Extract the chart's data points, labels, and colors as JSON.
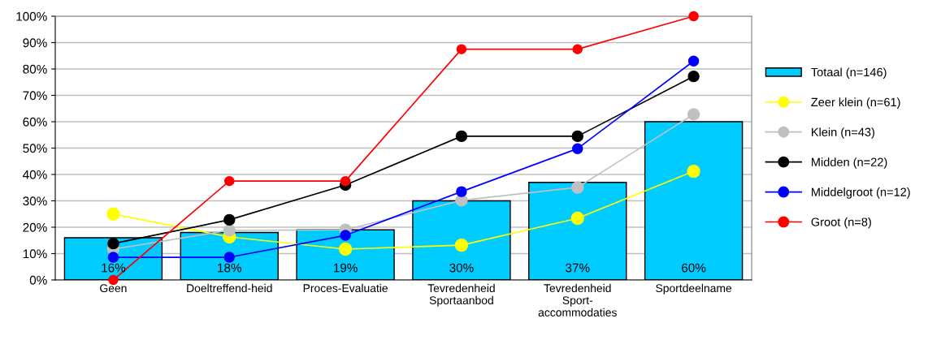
{
  "chart_data": {
    "type": "bar",
    "categories": [
      "Geen",
      "Doeltreffend-heid",
      "Proces-Evaluatie",
      "Tevredenheid\nSportaanbod",
      "Tevredenheid\nSport-\naccommodaties",
      "Sportdeelname"
    ],
    "series": [
      {
        "name": "Totaal (n=146)",
        "color": "#00ccff",
        "values": [
          16,
          18,
          19,
          30,
          37,
          60
        ],
        "value_labels": [
          "16%",
          "18%",
          "19%",
          "30%",
          "37%",
          "60%"
        ]
      },
      {
        "name": "Zeer klein (n=61)",
        "type": "line",
        "color": "#ffff00",
        "values": [
          25,
          16.3,
          11.7,
          13.2,
          23.4,
          41.2
        ]
      },
      {
        "name": "Klein (n=43)",
        "type": "line",
        "color": "#c0c0c0",
        "values": [
          11.7,
          18.8,
          19,
          30.2,
          35.1,
          62.8
        ]
      },
      {
        "name": "Midden (n=22)",
        "type": "line",
        "color": "#000000",
        "values": [
          13.8,
          22.8,
          36,
          54.5,
          54.5,
          77.2
        ]
      },
      {
        "name": "Middelgroot (n=12)",
        "type": "line",
        "color": "#0000ff",
        "values": [
          8.6,
          8.6,
          16.9,
          33.5,
          49.8,
          83
        ]
      },
      {
        "name": "Groot (n=8)",
        "type": "line",
        "color": "#ff0000",
        "values": [
          0,
          37.5,
          37.5,
          87.5,
          87.5,
          100
        ]
      }
    ],
    "ylim": [
      0,
      100
    ],
    "yticks": [
      {
        "value": 0,
        "label": "0%"
      },
      {
        "value": 10,
        "label": "10%"
      },
      {
        "value": 20,
        "label": "20%"
      },
      {
        "value": 30,
        "label": "30%"
      },
      {
        "value": 40,
        "label": "40%"
      },
      {
        "value": 50,
        "label": "50%"
      },
      {
        "value": 60,
        "label": "60%"
      },
      {
        "value": 70,
        "label": "70%"
      },
      {
        "value": 80,
        "label": "80%"
      },
      {
        "value": 90,
        "label": "90%"
      },
      {
        "value": 100,
        "label": "100%"
      }
    ],
    "grid": "y",
    "legend": "right",
    "marker": "circle",
    "line_style": "solid"
  }
}
